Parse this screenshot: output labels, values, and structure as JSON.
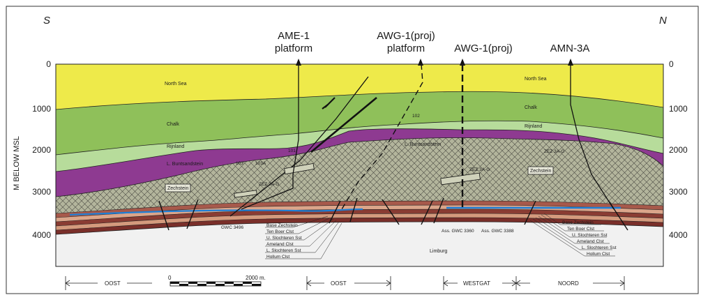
{
  "directions": {
    "south": "S",
    "north": "N"
  },
  "wells": [
    {
      "line1": "AME-1",
      "line2": "platform"
    },
    {
      "line1": "AWG-1(proj)",
      "line2": "platform"
    },
    {
      "line1": "AWG-1(proj)",
      "line2": ""
    },
    {
      "line1": "AMN-3A",
      "line2": ""
    }
  ],
  "depth_axis": {
    "label": "M BELOW MSL",
    "ticks": [
      "0",
      "1000",
      "2000",
      "3000",
      "4000"
    ]
  },
  "layers": {
    "north_sea_left": "North Sea",
    "north_sea_right": "North Sea",
    "chalk_left": "Chalk",
    "chalk_right": "Chalk",
    "rijnland_left": "Rijnland",
    "rijnland_right": "Rijnland",
    "buntsandstein_left": "L. Buntsandstein",
    "buntsandstein_right": "L. Buntsandstein",
    "zechstein_left": "Zechstein",
    "zechstein_right": "Zechstein",
    "limburg": "Limburg"
  },
  "annotations": {
    "f101": "101",
    "f102": "102",
    "f103": "103",
    "f103a": "103A",
    "zez_left": "ZEZ 3A-G",
    "zez_mid": "ZEZ 3A-G",
    "zez_right": "ZEZ 3A-G",
    "gwc_3496": "GWC 3496",
    "gwc_3360": "Ass. GWC 3360",
    "gwc_3388": "Ass. GWC 3388"
  },
  "base_units_left": [
    "Base Zechstein",
    "Ten Boer Clst",
    "U. Slochteren Sst",
    "Ameland Clst",
    "L. Slochteren Sst",
    "Hollum Clst"
  ],
  "base_units_right": [
    "Base Zechstein",
    "Ten Boer Clst",
    "U. Slochteren Sst",
    "Ameland Clst",
    "L. Slochteren Sst",
    "Hollum Clst"
  ],
  "sections": {
    "oost1": "OOST",
    "oost2": "OOST",
    "westgat": "WESTGAT",
    "noord": "NOORD"
  },
  "scale": {
    "start": "0",
    "end": "2000 m."
  },
  "colors": {
    "north_sea": "#eeea4a",
    "chalk": "#8fc05a",
    "rijnland": "#b7dc9b",
    "buntsandstein": "#8e3a91",
    "zechstein": "#b3b59c",
    "limburg": "#f1f1f1",
    "gwc": "#1e7fd6"
  }
}
